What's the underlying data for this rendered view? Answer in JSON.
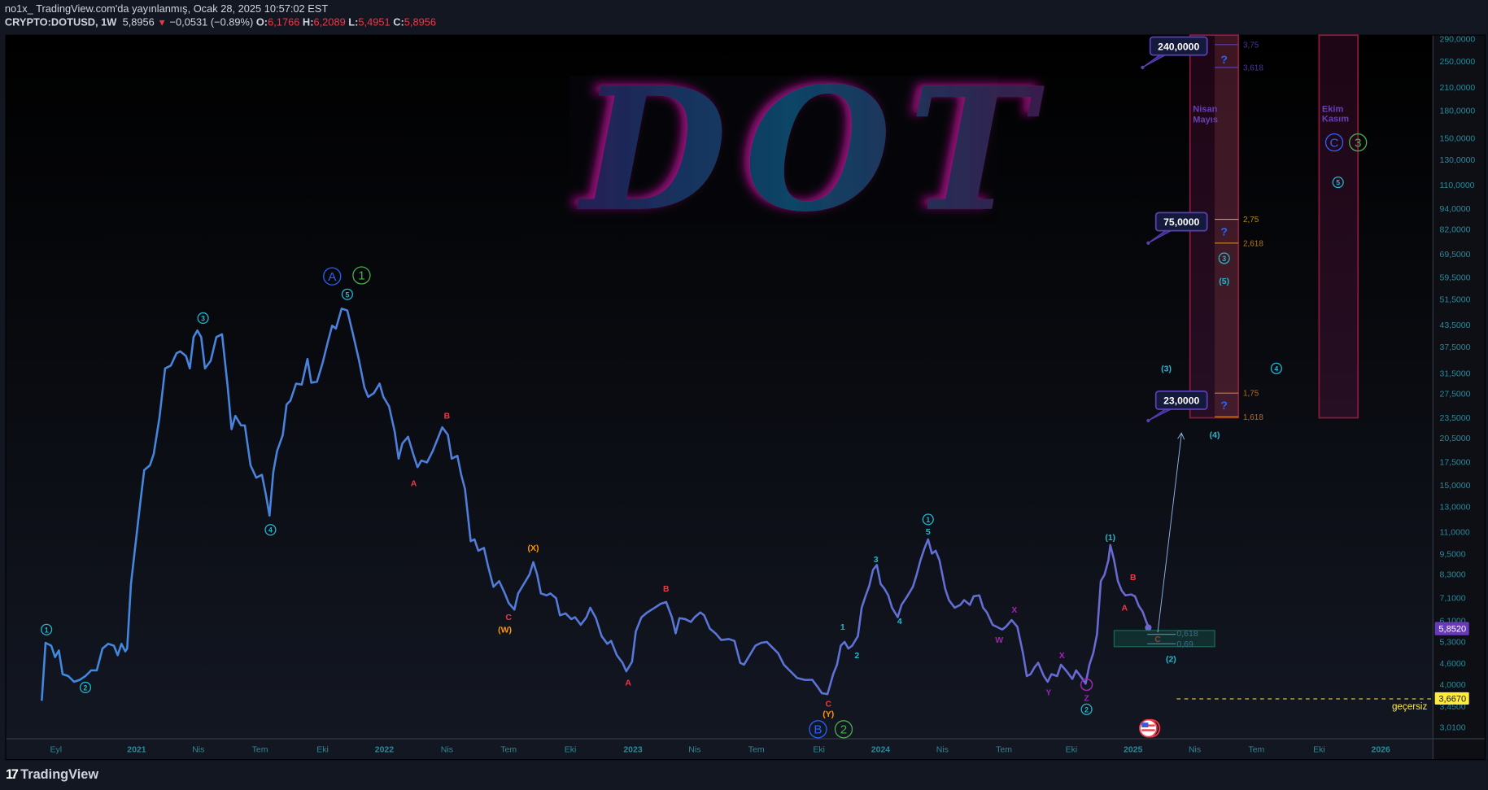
{
  "header": {
    "published_line": "no1x_  TradingView.com'da yayınlanmış, Ocak 28, 2025 10:57:02 EST",
    "symbol": "CRYPTO:DOTUSD, 1W",
    "last": "5,8956",
    "change": "−0,0531 (−0.89%)",
    "o_label": "O:",
    "o": "6,1766",
    "h_label": "H:",
    "h": "6,2089",
    "l_label": "L:",
    "l": "5,4951",
    "c_label": "C:",
    "c": "5,8956"
  },
  "logo_text": "DOT",
  "price_axis": {
    "scale": "log",
    "ticks": [
      "290,0000",
      "250,0000",
      "210,0000",
      "180,0000",
      "150,0000",
      "130,0000",
      "110,0000",
      "94,0000",
      "82,0000",
      "69,5000",
      "59,5000",
      "51,5000",
      "43,5000",
      "37,5000",
      "31,5000",
      "27,5000",
      "23,5000",
      "20,5000",
      "17,5000",
      "15,0000",
      "13,0000",
      "11,0000",
      "9,5000",
      "8,3000",
      "7,1000",
      "6,1000",
      "5,3000",
      "4,6000",
      "4,0000",
      "3,4500",
      "3,0100"
    ],
    "current_price": "5,8520",
    "invalidation_price": "3,6670"
  },
  "time_axis": {
    "ticks": [
      "Eyl",
      "2021",
      "Nis",
      "Tem",
      "Eki",
      "2022",
      "Nis",
      "Tem",
      "Eki",
      "2023",
      "Nis",
      "Tem",
      "Eki",
      "2024",
      "Nis",
      "Tem",
      "Eki",
      "2025",
      "Nis",
      "Tem",
      "Eki",
      "2026"
    ]
  },
  "waves": [
    "A",
    "1",
    "5",
    "3",
    "4",
    "1",
    "2",
    "B",
    "A",
    "C",
    "(W)",
    "(X)",
    "B",
    "A",
    "C",
    "(Y)",
    "B",
    "2",
    "1",
    "2",
    "3",
    "4",
    "1",
    "5",
    "X",
    "W",
    "X",
    "Y",
    "Z",
    "2",
    "(1)",
    "B",
    "A",
    "C",
    "(2)",
    "(3)",
    "4",
    "(4)",
    "3",
    "(5)",
    "C",
    "3",
    "5"
  ],
  "fib_levels": [
    "3,75",
    "3,618",
    "2,75",
    "2,618",
    "1,75",
    "1,618"
  ],
  "retracement_levels": [
    "0,618",
    "0,69"
  ],
  "question_mark": "?",
  "targets": [
    "240,0000",
    "75,0000",
    "23,0000"
  ],
  "time_windows": [
    {
      "line1": "Nisan",
      "line2": "Mayıs"
    },
    {
      "line1": "Ekim",
      "line2": "Kasım"
    }
  ],
  "invalid_label": "geçersiz",
  "footer": {
    "brand": "TradingView",
    "logo_mark": "17"
  },
  "colors": {
    "background": "#131722",
    "price_line": "#5c6fd6",
    "wave_cyan": "#22b8cf",
    "wave_red": "#f23645",
    "wave_orange": "#ff9800",
    "wave_purple": "#9c27b0",
    "wave_blue": "#2962ff",
    "wave_green": "#4caf50",
    "invalidation": "#ffeb3b",
    "current_price_badge": "#673ab7"
  }
}
